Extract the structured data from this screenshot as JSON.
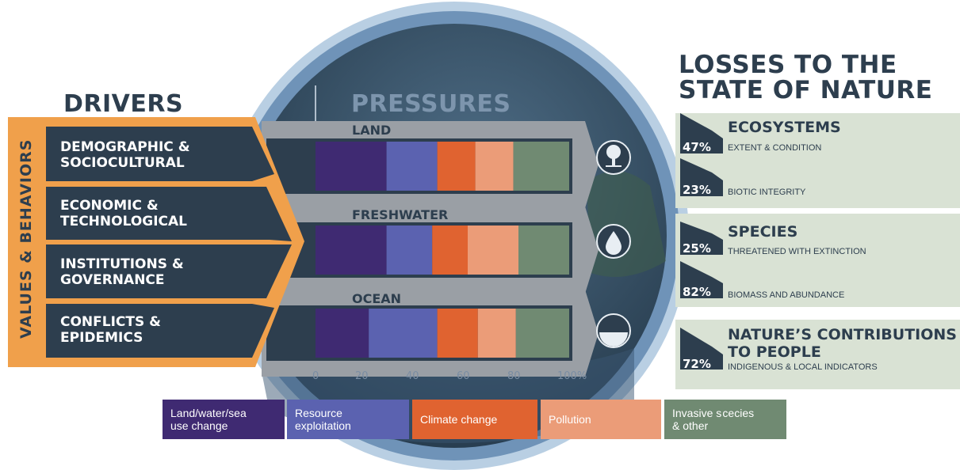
{
  "headers": {
    "drivers": "DRIVERS",
    "pressures": "PRESSURES",
    "losses_line1": "LOSSES TO THE",
    "losses_line2": "STATE OF NATURE"
  },
  "values_behaviors": "VALUES & BEHAVIORS",
  "drivers": [
    {
      "line1": "DEMOGRAPHIC &",
      "line2": "SOCIOCULTURAL"
    },
    {
      "line1": "ECONOMIC &",
      "line2": "TECHNOLOGICAL"
    },
    {
      "line1": "INSTITUTIONS &",
      "line2": "GOVERNANCE"
    },
    {
      "line1": "CONFLICTS &",
      "line2": "EPIDEMICS"
    }
  ],
  "realms": [
    {
      "label": "LAND",
      "icon": "tree-icon"
    },
    {
      "label": "FRESHWATER",
      "icon": "water-drop-icon"
    },
    {
      "label": "OCEAN",
      "icon": "ocean-wave-icon"
    }
  ],
  "axis_ticks": [
    "0",
    "20",
    "40",
    "60",
    "80",
    "100%"
  ],
  "chart_data": {
    "type": "bar",
    "stacked": true,
    "orientation": "horizontal",
    "categories": [
      "LAND",
      "FRESHWATER",
      "OCEAN"
    ],
    "xlim": [
      0,
      100
    ],
    "series": [
      {
        "name": "Land/water/sea use change",
        "color": "#3f2a72",
        "values": [
          28,
          28,
          21
        ]
      },
      {
        "name": "Resource exploitation",
        "color": "#5b62b0",
        "values": [
          20,
          18,
          27
        ]
      },
      {
        "name": "Climate change",
        "color": "#e06330",
        "values": [
          15,
          14,
          16
        ]
      },
      {
        "name": "Pollution",
        "color": "#eb9c78",
        "values": [
          15,
          20,
          15
        ]
      },
      {
        "name": "Invasive species & other",
        "color": "#708a72",
        "values": [
          22,
          20,
          21
        ]
      }
    ]
  },
  "legend": [
    {
      "line1": "Land/water/sea",
      "line2": "use change",
      "color": "#3f2a72"
    },
    {
      "line1": "Resource",
      "line2": "exploitation",
      "color": "#5b62b0"
    },
    {
      "line1": "Climate change",
      "line2": "",
      "color": "#e06330"
    },
    {
      "line1": "Pollution",
      "line2": "",
      "color": "#eb9c78"
    },
    {
      "line1": "Invasive s cecies",
      "line2": "& other",
      "color": "#708a72"
    }
  ],
  "losses": [
    {
      "title_line1": "ECOSYSTEMS",
      "title_line2": "",
      "items": [
        {
          "pct": "47%",
          "desc": "EXTENT & CONDITION"
        },
        {
          "pct": "23%",
          "desc": "BIOTIC INTEGRITY"
        }
      ]
    },
    {
      "title_line1": "SPECIES",
      "title_line2": "",
      "items": [
        {
          "pct": "25%",
          "desc": "THREATENED WITH EXTINCTION"
        },
        {
          "pct": "82%",
          "desc": "BIOMASS AND ABUNDANCE"
        }
      ]
    },
    {
      "title_line1": "NATURE’S CONTRIBUTIONS",
      "title_line2": "TO PEOPLE",
      "items": [
        {
          "pct": "72%",
          "desc": "INDIGENOUS & LOCAL INDICATORS"
        }
      ]
    }
  ],
  "colors": {
    "dark_slate": "#2d3e4e",
    "orange_accent": "#f0a04b",
    "panel_green": "#d9e2d4",
    "circle_blue": "#5f86ad",
    "band_gray": "#9a9fa5"
  }
}
